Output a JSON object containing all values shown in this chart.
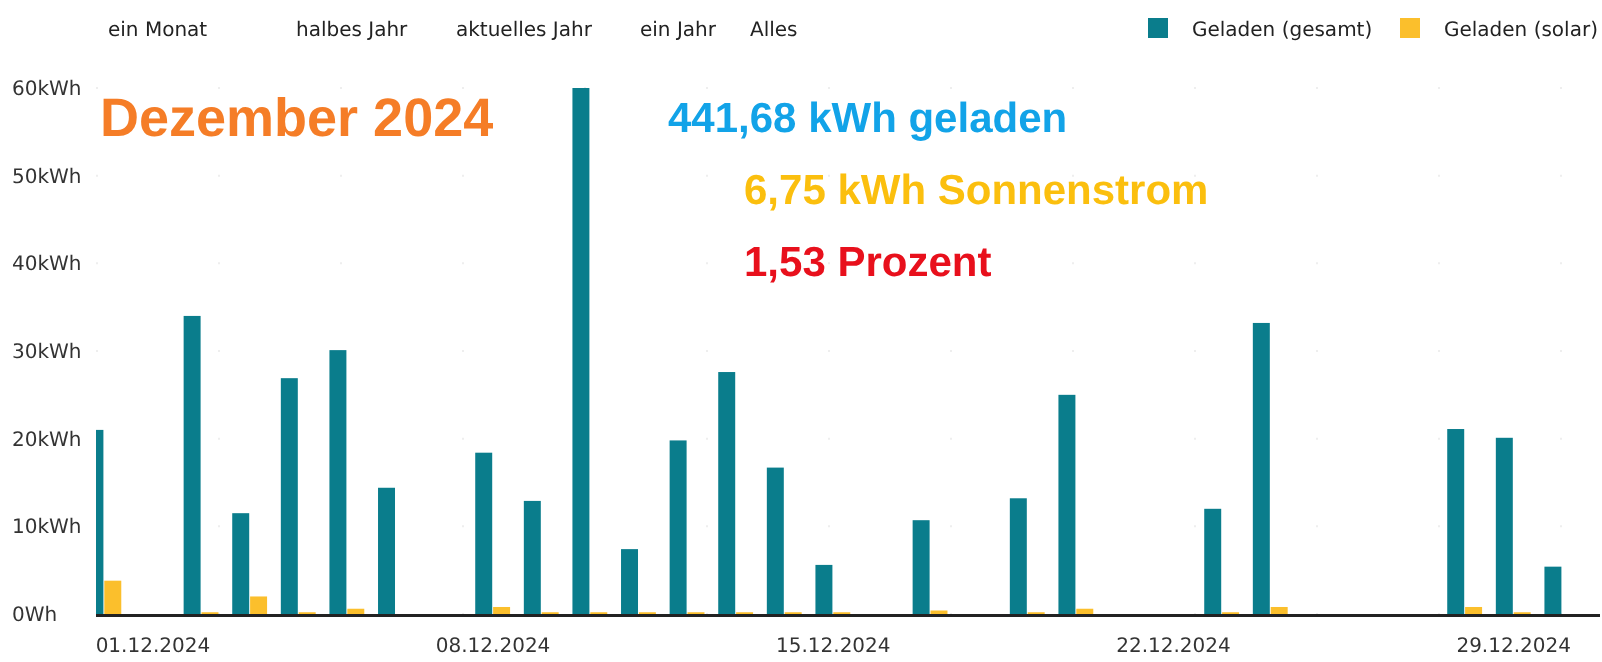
{
  "chart_data": {
    "type": "bar",
    "title": "Dezember 2024",
    "annotations": [
      "ein Monat",
      "halbes Jahr",
      "aktuelles Jahr",
      "ein Jahr",
      "Alles",
      "441,68 kWh geladen",
      "6,75 kWh Sonnenstrom",
      "1,53 Prozent"
    ],
    "categories": [
      null,
      "01.12.2024",
      null,
      null,
      null,
      null,
      null,
      null,
      "08.12.2024",
      null,
      null,
      null,
      null,
      null,
      null,
      "15.12.2024",
      null,
      null,
      null,
      null,
      null,
      null,
      "22.12.2024",
      null,
      null,
      null,
      null,
      null,
      null,
      "29.12.2024",
      null,
      null
    ],
    "series": [
      {
        "name": "Geladen (gesamt)",
        "color": "#0a7d8c",
        "values": [
          21,
          0,
          34,
          11.5,
          26.9,
          30.1,
          14.4,
          0,
          18.4,
          12.9,
          60,
          7.4,
          19.8,
          27.6,
          16.7,
          5.6,
          0,
          10.7,
          0,
          13.2,
          25,
          0,
          0,
          12,
          33.2,
          0,
          0,
          0,
          21.1,
          20.1,
          5.4,
          0
        ]
      },
      {
        "name": "Geladen (solar)",
        "color": "#fbbf2c",
        "values": [
          3.8,
          0,
          0.2,
          2,
          0.2,
          0.6,
          0,
          0,
          0.8,
          0.2,
          0.2,
          0.2,
          0.2,
          0.2,
          0.2,
          0.2,
          0,
          0.4,
          0,
          0.2,
          0.6,
          0,
          0,
          0.2,
          0.8,
          0,
          0,
          0,
          0.8,
          0.2,
          0,
          0
        ]
      }
    ],
    "ylim": [
      0,
      60
    ],
    "yticks": [
      {
        "value": 0,
        "label": "0Wh"
      },
      {
        "value": 10,
        "label": "10kWh"
      },
      {
        "value": 20,
        "label": "20kWh"
      },
      {
        "value": 30,
        "label": "30kWh"
      },
      {
        "value": 40,
        "label": "40kWh"
      },
      {
        "value": 50,
        "label": "50kWh"
      },
      {
        "value": 60,
        "label": "60kWh"
      }
    ],
    "grid": "y",
    "legend": "top right"
  }
}
